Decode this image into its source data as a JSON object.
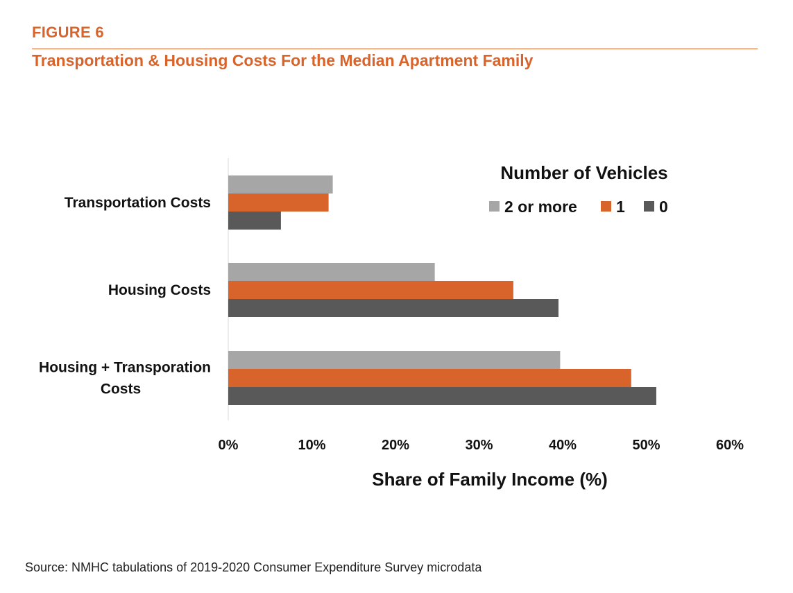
{
  "figure": {
    "label": "FIGURE 6",
    "title": "Transportation & Housing Costs For the Median Apartment Family"
  },
  "source": "Source: NMHC tabulations of 2019-2020 Consumer Expenditure Survey microdata",
  "colors": {
    "accent": "#d9642b",
    "two_or_more": "#a6a6a6",
    "one": "#d9642b",
    "zero": "#595959",
    "axis": "#d9d9d9"
  },
  "chart_data": {
    "type": "bar",
    "orientation": "horizontal",
    "categories": [
      "Transportation Costs",
      "Housing Costs",
      "Housing + Transporation Costs"
    ],
    "category_lines": [
      [
        "Transportation Costs"
      ],
      [
        "Housing Costs"
      ],
      [
        "Housing + Transporation",
        "Costs"
      ]
    ],
    "series": [
      {
        "name": "2 or more",
        "values": [
          12.5,
          24.7,
          39.7
        ]
      },
      {
        "name": "1",
        "values": [
          12.0,
          34.1,
          48.2
        ]
      },
      {
        "name": "0",
        "values": [
          6.3,
          39.5,
          51.2
        ]
      }
    ],
    "xlabel": "Share of Family Income (%)",
    "ylabel": "",
    "xlim": [
      0,
      60
    ],
    "xticks": [
      "0%",
      "10%",
      "20%",
      "30%",
      "40%",
      "50%",
      "60%"
    ],
    "legend": {
      "title": "Number of Vehicles",
      "placement": "top-right"
    },
    "grid": false
  }
}
